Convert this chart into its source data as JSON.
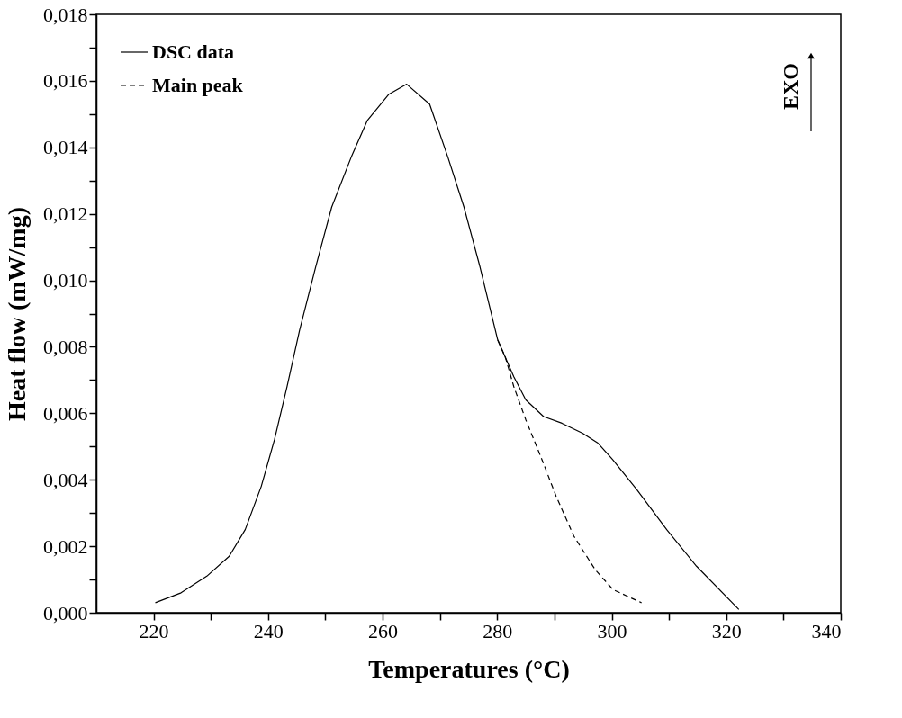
{
  "chart_data": {
    "type": "line",
    "xlabel": "Temperatures (°C)",
    "ylabel": "Heat flow (mW/mg)",
    "xlim": [
      210,
      340
    ],
    "ylim": [
      0,
      0.018
    ],
    "xticks": [
      {
        "value": 220,
        "label": "220"
      },
      {
        "value": 230,
        "label": null
      },
      {
        "value": 240,
        "label": "240"
      },
      {
        "value": 250,
        "label": null
      },
      {
        "value": 260,
        "label": "260"
      },
      {
        "value": 270,
        "label": null
      },
      {
        "value": 280,
        "label": "280"
      },
      {
        "value": 290,
        "label": null
      },
      {
        "value": 300,
        "label": "300"
      },
      {
        "value": 310,
        "label": null
      },
      {
        "value": 320,
        "label": "320"
      },
      {
        "value": 330,
        "label": null
      },
      {
        "value": 340,
        "label": "340"
      }
    ],
    "yticks": [
      {
        "value": 0,
        "label": "0,000"
      },
      {
        "value": 0.001,
        "label": null
      },
      {
        "value": 0.002,
        "label": "0,002"
      },
      {
        "value": 0.003,
        "label": null
      },
      {
        "value": 0.004,
        "label": "0,004"
      },
      {
        "value": 0.005,
        "label": null
      },
      {
        "value": 0.006,
        "label": "0,006"
      },
      {
        "value": 0.007,
        "label": null
      },
      {
        "value": 0.008,
        "label": "0,008"
      },
      {
        "value": 0.009,
        "label": null
      },
      {
        "value": 0.01,
        "label": "0,010"
      },
      {
        "value": 0.011,
        "label": null
      },
      {
        "value": 0.012,
        "label": "0,012"
      },
      {
        "value": 0.013,
        "label": null
      },
      {
        "value": 0.014,
        "label": "0,014"
      },
      {
        "value": 0.015,
        "label": null
      },
      {
        "value": 0.016,
        "label": "0,016"
      },
      {
        "value": 0.017,
        "label": null
      },
      {
        "value": 0.018,
        "label": "0,018"
      }
    ],
    "grid": false,
    "legend": "top left",
    "marker": "none",
    "annotations": [
      "EXO"
    ],
    "series": [
      {
        "name": "DSC data",
        "color": "#000000",
        "line_style": "solid",
        "x": [
          220.3,
          224.8,
          229.3,
          233.2,
          236.0,
          238.8,
          241.1,
          243.3,
          245.5,
          248.3,
          251.1,
          254.5,
          257.3,
          261.1,
          264.2,
          268.2,
          271.4,
          274.2,
          277.0,
          280.1,
          282.9,
          285.0,
          288.1,
          291.3,
          294.9,
          297.6,
          300.2,
          304.4,
          309.6,
          314.8,
          322.2
        ],
        "values": [
          0.0003,
          0.0006,
          0.0011,
          0.0017,
          0.0025,
          0.0038,
          0.0052,
          0.0068,
          0.0085,
          0.0104,
          0.0122,
          0.0137,
          0.0148,
          0.0156,
          0.0159,
          0.0153,
          0.0137,
          0.0122,
          0.0104,
          0.0082,
          0.0071,
          0.0064,
          0.0059,
          0.0057,
          0.0054,
          0.0051,
          0.0046,
          0.0037,
          0.0025,
          0.0014,
          0.0001
        ]
      },
      {
        "name": "Main peak",
        "color": "#000000",
        "line_style": "dashed",
        "x": [
          280.1,
          281.4,
          282.9,
          285.0,
          287.6,
          290.3,
          293.4,
          297.1,
          300.2,
          305.2
        ],
        "values": [
          0.0082,
          0.0077,
          0.0068,
          0.0058,
          0.0047,
          0.0035,
          0.0023,
          0.0013,
          0.0007,
          0.0003
        ]
      }
    ]
  }
}
